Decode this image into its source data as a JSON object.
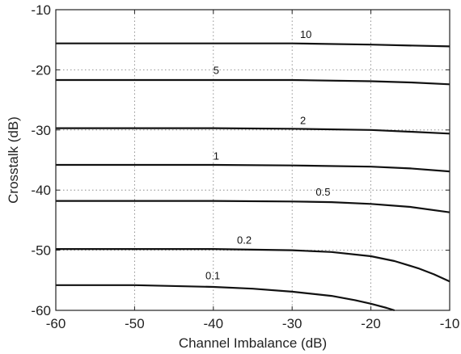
{
  "chart_data": {
    "type": "line",
    "title": "",
    "xlabel": "Channel Imbalance (dB)",
    "ylabel": "Crosstalk (dB)",
    "xlim": [
      -60,
      -10
    ],
    "ylim": [
      -60,
      -10
    ],
    "xticks": [
      -60,
      -50,
      -40,
      -30,
      -20,
      -10
    ],
    "yticks": [
      -60,
      -50,
      -40,
      -30,
      -20,
      -10
    ],
    "grid": true,
    "series": [
      {
        "name": "10",
        "label_at": [
          -29,
          -14.7
        ],
        "points": [
          [
            -60,
            -15.6
          ],
          [
            -50,
            -15.6
          ],
          [
            -40,
            -15.6
          ],
          [
            -30,
            -15.6
          ],
          [
            -20,
            -15.8
          ],
          [
            -10,
            -16.1
          ]
        ]
      },
      {
        "name": "5",
        "label_at": [
          -40,
          -20.7
        ],
        "points": [
          [
            -60,
            -21.7
          ],
          [
            -50,
            -21.7
          ],
          [
            -40,
            -21.7
          ],
          [
            -30,
            -21.7
          ],
          [
            -20,
            -21.9
          ],
          [
            -15,
            -22.1
          ],
          [
            -10,
            -22.4
          ]
        ]
      },
      {
        "name": "2",
        "label_at": [
          -29,
          -29.0
        ],
        "points": [
          [
            -60,
            -29.7
          ],
          [
            -50,
            -29.7
          ],
          [
            -40,
            -29.7
          ],
          [
            -30,
            -29.8
          ],
          [
            -20,
            -30.0
          ],
          [
            -15,
            -30.3
          ],
          [
            -10,
            -30.6
          ]
        ]
      },
      {
        "name": "1",
        "label_at": [
          -40,
          -34.9
        ],
        "points": [
          [
            -60,
            -35.8
          ],
          [
            -50,
            -35.8
          ],
          [
            -40,
            -35.8
          ],
          [
            -30,
            -35.9
          ],
          [
            -20,
            -36.1
          ],
          [
            -15,
            -36.4
          ],
          [
            -10,
            -36.9
          ]
        ]
      },
      {
        "name": "0.5",
        "label_at": [
          -27,
          -40.9
        ],
        "points": [
          [
            -60,
            -41.8
          ],
          [
            -50,
            -41.8
          ],
          [
            -40,
            -41.8
          ],
          [
            -30,
            -41.9
          ],
          [
            -25,
            -42.0
          ],
          [
            -20,
            -42.3
          ],
          [
            -15,
            -42.8
          ],
          [
            -10,
            -43.7
          ]
        ]
      },
      {
        "name": "0.2",
        "label_at": [
          -37,
          -48.9
        ],
        "points": [
          [
            -60,
            -49.8
          ],
          [
            -50,
            -49.8
          ],
          [
            -40,
            -49.8
          ],
          [
            -30,
            -50.0
          ],
          [
            -25,
            -50.3
          ],
          [
            -20,
            -51.0
          ],
          [
            -17,
            -51.8
          ],
          [
            -14,
            -53.0
          ],
          [
            -12,
            -54.0
          ],
          [
            -10,
            -55.2
          ]
        ]
      },
      {
        "name": "0.1",
        "label_at": [
          -41,
          -54.8
        ],
        "points": [
          [
            -60,
            -55.8
          ],
          [
            -50,
            -55.8
          ],
          [
            -40,
            -56.1
          ],
          [
            -35,
            -56.4
          ],
          [
            -30,
            -56.9
          ],
          [
            -25,
            -57.6
          ],
          [
            -22,
            -58.3
          ],
          [
            -20,
            -58.9
          ],
          [
            -18,
            -59.6
          ],
          [
            -17,
            -60
          ]
        ]
      }
    ]
  }
}
